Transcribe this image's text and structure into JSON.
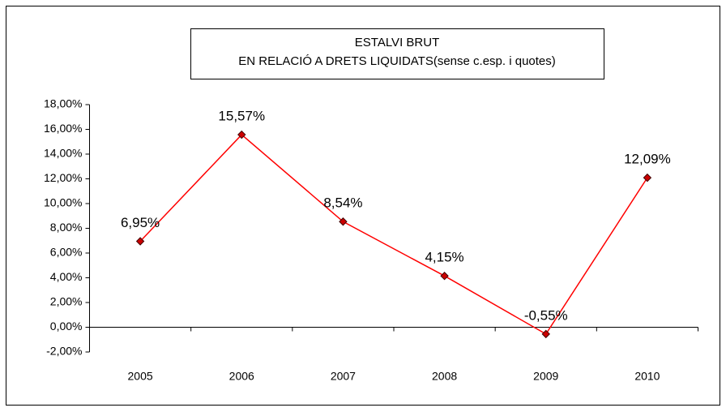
{
  "chart_data": {
    "type": "line",
    "title": "ESTALVI BRUT",
    "subtitle": "EN RELACIÓ A DRETS LIQUIDATS(sense c.esp. i quotes)",
    "categories": [
      "2005",
      "2006",
      "2007",
      "2008",
      "2009",
      "2010"
    ],
    "values": [
      6.95,
      15.57,
      8.54,
      4.15,
      -0.55,
      12.09
    ],
    "value_labels": [
      "6,95%",
      "15,57%",
      "8,54%",
      "4,15%",
      "-0,55%",
      "12,09%"
    ],
    "color": "#ff0000",
    "marker_color": "#cc0000",
    "ylim": [
      -2,
      18
    ],
    "yticks": [
      {
        "value": -2,
        "label": "-2,00%"
      },
      {
        "value": 0,
        "label": "0,00%"
      },
      {
        "value": 2,
        "label": "2,00%"
      },
      {
        "value": 4,
        "label": "4,00%"
      },
      {
        "value": 6,
        "label": "6,00%"
      },
      {
        "value": 8,
        "label": "8,00%"
      },
      {
        "value": 10,
        "label": "10,00%"
      },
      {
        "value": 12,
        "label": "12,00%"
      },
      {
        "value": 14,
        "label": "14,00%"
      },
      {
        "value": 16,
        "label": "16,00%"
      },
      {
        "value": 18,
        "label": "18,00%"
      }
    ],
    "grid": false
  }
}
